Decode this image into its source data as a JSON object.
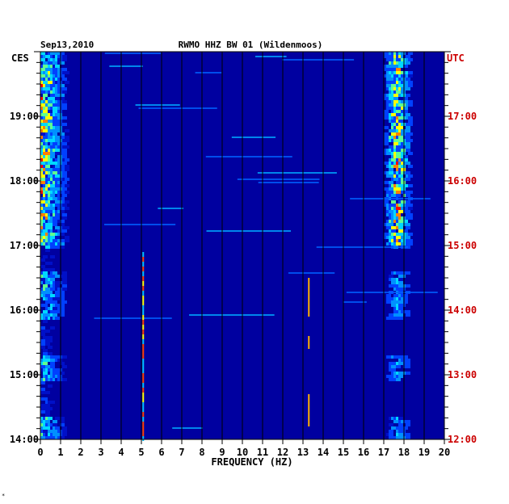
{
  "header": {
    "date": "Sep13,2010",
    "station": "RWMO HHZ BW 01 (Wildenmoos)",
    "left_tz": "CES",
    "right_tz": "UTC"
  },
  "footer": {
    "mark": "*"
  },
  "colors": {
    "background": "#0000a0",
    "gridline": "#000000",
    "left_labels": "#000000",
    "right_labels": "#cc0000"
  },
  "chart_data": {
    "type": "heatmap",
    "title": "RWMO HHZ BW 01 (Wildenmoos)",
    "xlabel": "FREQUENCY (HZ)",
    "ylabel": "",
    "xlim": [
      0,
      20
    ],
    "x_ticks": [
      "0",
      "1",
      "2",
      "3",
      "4",
      "5",
      "6",
      "7",
      "8",
      "9",
      "10",
      "11",
      "12",
      "13",
      "14",
      "15",
      "16",
      "17",
      "18",
      "19",
      "20"
    ],
    "left_time_ticks": [
      {
        "label": "19:00",
        "hours_from_bottom": 5
      },
      {
        "label": "18:00",
        "hours_from_bottom": 4
      },
      {
        "label": "17:00",
        "hours_from_bottom": 3
      },
      {
        "label": "16:00",
        "hours_from_bottom": 2
      },
      {
        "label": "15:00",
        "hours_from_bottom": 1
      },
      {
        "label": "14:00",
        "hours_from_bottom": 0
      }
    ],
    "right_time_ticks": [
      {
        "label": "17:00",
        "hours_from_bottom": 5
      },
      {
        "label": "16:00",
        "hours_from_bottom": 4
      },
      {
        "label": "15:00",
        "hours_from_bottom": 3
      },
      {
        "label": "14:00",
        "hours_from_bottom": 2
      },
      {
        "label": "13:00",
        "hours_from_bottom": 1
      },
      {
        "label": "12:00",
        "hours_from_bottom": 0
      }
    ],
    "time_span_hours": 6,
    "grid": true
  }
}
